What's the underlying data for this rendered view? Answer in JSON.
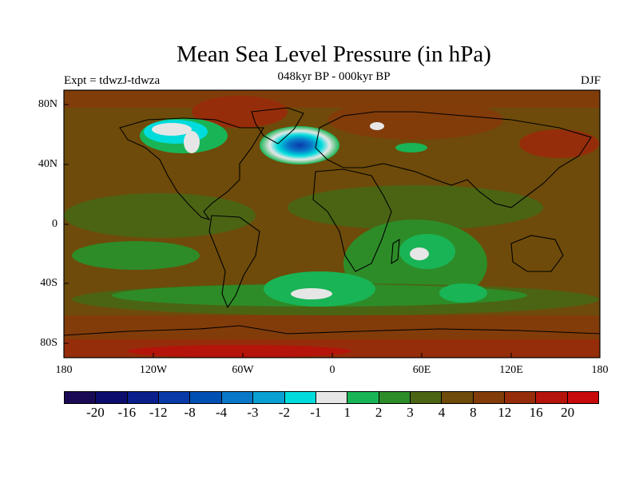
{
  "title": "Mean Sea Level Pressure (in hPa)",
  "subtitle": "048kyr BP - 000kyr BP",
  "expt_label": "Expt = tdwzJ-tdwza",
  "season": "DJF",
  "y_ticks": [
    "80N",
    "40N",
    "0",
    "40S",
    "80S"
  ],
  "x_ticks": [
    "180",
    "120W",
    "60W",
    "0",
    "60E",
    "120E",
    "180"
  ],
  "colorbar": {
    "colors": [
      "#1a0a55",
      "#0d0d6e",
      "#0a1f8c",
      "#0a3aa8",
      "#0050b4",
      "#0a78c8",
      "#0aa0d2",
      "#00dcdc",
      "#e6e6e6",
      "#19b455",
      "#2d8c28",
      "#4b6414",
      "#6e4b0a",
      "#823c0a",
      "#962d0a",
      "#b4140a",
      "#c80a0a"
    ],
    "labels": [
      "-20",
      "-16",
      "-12",
      "-8",
      "-4",
      "-3",
      "-2",
      "-1",
      "1",
      "2",
      "3",
      "4",
      "8",
      "12",
      "16",
      "20"
    ]
  }
}
